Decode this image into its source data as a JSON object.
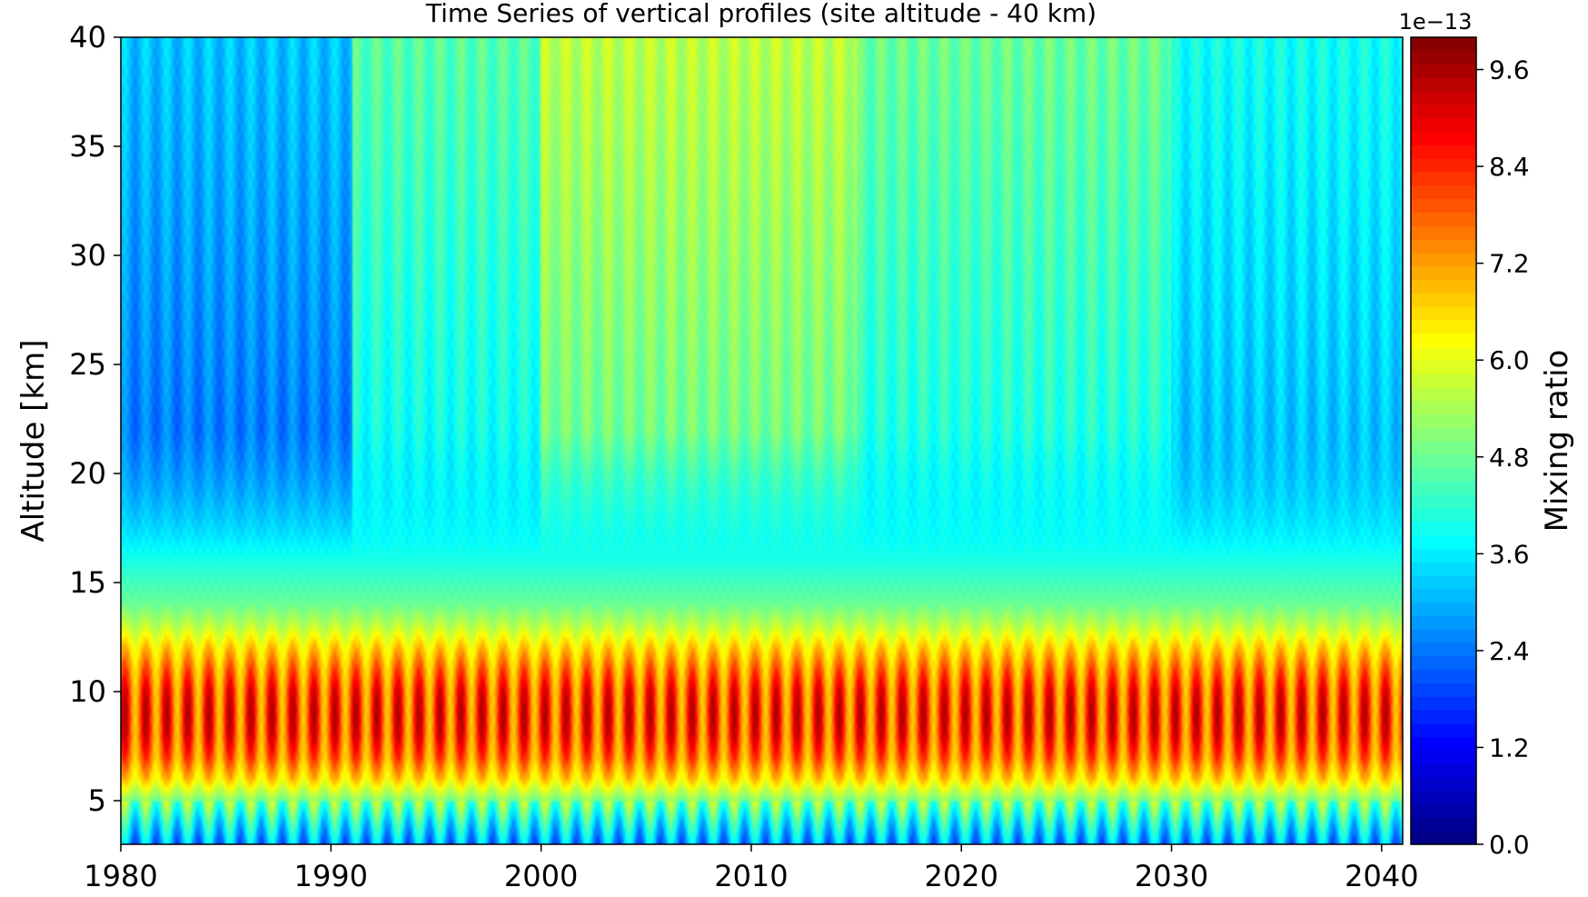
{
  "chart_data": {
    "type": "heatmap",
    "title": "Time Series of vertical profiles (site altitude - 40 km)",
    "xlabel": "",
    "ylabel": "Altitude [km]",
    "xlim": [
      1980,
      2041
    ],
    "ylim": [
      3,
      40
    ],
    "x_ticks": [
      1980,
      1990,
      2000,
      2010,
      2020,
      2030,
      2040
    ],
    "y_ticks": [
      5,
      10,
      15,
      20,
      25,
      30,
      35,
      40
    ],
    "colorbar": {
      "label": "Mixing ratio",
      "scale_label": "1e−13",
      "colormap": "jet",
      "range": [
        0.0,
        10.0
      ],
      "ticks": [
        "0.0",
        "1.2",
        "2.4",
        "3.6",
        "4.8",
        "6.0",
        "7.2",
        "8.4",
        "9.6"
      ]
    },
    "profile": {
      "altitudes_km": [
        3,
        4,
        5,
        6,
        7,
        8,
        9,
        10,
        11,
        12,
        13,
        14,
        15,
        16,
        17,
        18,
        20,
        22,
        25,
        28,
        30,
        33,
        36,
        40
      ],
      "mixing_ratio_e13": [
        2.8,
        3.8,
        5.0,
        6.6,
        7.6,
        8.1,
        8.2,
        8.0,
        7.4,
        6.6,
        5.6,
        4.8,
        4.4,
        4.0,
        3.8,
        3.7,
        3.5,
        3.4,
        3.4,
        3.5,
        3.7,
        4.0,
        4.2,
        4.4
      ]
    },
    "period_means_e13": [
      {
        "start": 1980,
        "end": 1991,
        "stratosphere": 2.6
      },
      {
        "start": 1991,
        "end": 2000,
        "stratosphere": 4.0
      },
      {
        "start": 2000,
        "end": 2015,
        "stratosphere": 5.0
      },
      {
        "start": 2015,
        "end": 2030,
        "stratosphere": 4.2
      },
      {
        "start": 2030,
        "end": 2041,
        "stratosphere": 3.3
      }
    ],
    "seasonal_cycle": "annual oscillation, one cycle per year"
  }
}
